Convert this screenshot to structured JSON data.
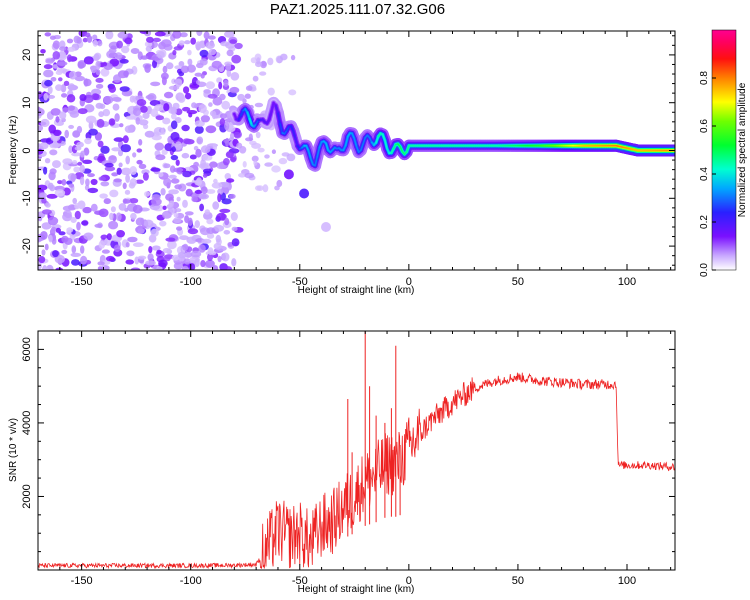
{
  "title": "PAZ1.2025.111.07.32.G06",
  "chart_data": [
    {
      "type": "heatmap",
      "xlabel": "Height of straight line (km)",
      "ylabel": "Frequency (Hz)",
      "xlim": [
        -170,
        122
      ],
      "ylim": [
        -25,
        25
      ],
      "x_ticks": [
        "-150",
        "-100",
        "-50",
        "0",
        "50",
        "100"
      ],
      "x_tick_values": [
        -150,
        -100,
        -50,
        0,
        50,
        100
      ],
      "y_ticks": [
        "-20",
        "-10",
        "0",
        "10",
        "20"
      ],
      "y_tick_values": [
        -20,
        -10,
        0,
        10,
        20
      ],
      "colorbar": {
        "label": "Normalized spectral amplitude",
        "ticks": [
          "0.0",
          "0.2",
          "0.4",
          "0.6",
          "0.8"
        ],
        "tick_values": [
          0.0,
          0.2,
          0.4,
          0.6,
          0.8
        ],
        "colormap": "rainbow (purple-blue-cyan-green-yellow-orange-red-magenta)"
      },
      "noise_region_x": [
        -170,
        -78
      ],
      "ridge": [
        {
          "x": -80,
          "y": 8,
          "amp": 0.15
        },
        {
          "x": -73,
          "y": 7,
          "amp": 0.4
        },
        {
          "x": -68,
          "y": 5,
          "amp": 0.2
        },
        {
          "x": -62,
          "y": 9,
          "amp": 0.15
        },
        {
          "x": -58,
          "y": 5,
          "amp": 0.3
        },
        {
          "x": -52,
          "y": 3,
          "amp": 0.2
        },
        {
          "x": -48,
          "y": 0,
          "amp": 0.35
        },
        {
          "x": -43,
          "y": -2,
          "amp": 0.3
        },
        {
          "x": -38,
          "y": 2,
          "amp": 0.35
        },
        {
          "x": -33,
          "y": -1,
          "amp": 0.3
        },
        {
          "x": -28,
          "y": 3,
          "amp": 0.35
        },
        {
          "x": -23,
          "y": 1,
          "amp": 0.3
        },
        {
          "x": -18,
          "y": 2,
          "amp": 0.3
        },
        {
          "x": -14,
          "y": 3,
          "amp": 0.45
        },
        {
          "x": -10,
          "y": 1,
          "amp": 0.4
        },
        {
          "x": -5,
          "y": 0,
          "amp": 0.5
        },
        {
          "x": 0,
          "y": 1,
          "amp": 0.45
        },
        {
          "x": 20,
          "y": 1,
          "amp": 0.45
        },
        {
          "x": 40,
          "y": 1,
          "amp": 0.45
        },
        {
          "x": 60,
          "y": 1,
          "amp": 0.55
        },
        {
          "x": 80,
          "y": 1,
          "amp": 0.75
        },
        {
          "x": 95,
          "y": 1,
          "amp": 0.8
        },
        {
          "x": 105,
          "y": 0,
          "amp": 0.75
        },
        {
          "x": 122,
          "y": 0,
          "amp": 0.8
        }
      ],
      "side_lobe": [
        {
          "x": -55,
          "y": -5,
          "amp": 0.15
        },
        {
          "x": -48,
          "y": -9,
          "amp": 0.2
        },
        {
          "x": -38,
          "y": -16,
          "amp": 0.05
        }
      ]
    },
    {
      "type": "line",
      "xlabel": "Height of straight line (km)",
      "ylabel": "SNR (10 * v/v)",
      "xlim": [
        -170,
        122
      ],
      "ylim": [
        0,
        6500
      ],
      "x_ticks": [
        "-150",
        "-100",
        "-50",
        "0",
        "50",
        "100"
      ],
      "x_tick_values": [
        -150,
        -100,
        -50,
        0,
        50,
        100
      ],
      "y_ticks": [
        "2000",
        "4000",
        "6000"
      ],
      "y_tick_values": [
        2000,
        4000,
        6000
      ],
      "series": [
        {
          "color": "#ee2222",
          "points": [
            [
              -170,
              120
            ],
            [
              -130,
              120
            ],
            [
              -100,
              120
            ],
            [
              -80,
              130
            ],
            [
              -70,
              150
            ],
            [
              -65,
              600
            ],
            [
              -60,
              1100
            ],
            [
              -55,
              900
            ],
            [
              -50,
              1000
            ],
            [
              -45,
              700
            ],
            [
              -40,
              1200
            ],
            [
              -35,
              1300
            ],
            [
              -30,
              1700
            ],
            [
              -25,
              2000
            ],
            [
              -20,
              2400
            ],
            [
              -15,
              2600
            ],
            [
              -10,
              2900
            ],
            [
              -5,
              2900
            ],
            [
              0,
              3300
            ],
            [
              5,
              3700
            ],
            [
              10,
              4050
            ],
            [
              15,
              4300
            ],
            [
              20,
              4550
            ],
            [
              25,
              4750
            ],
            [
              30,
              4950
            ],
            [
              35,
              5050
            ],
            [
              40,
              5150
            ],
            [
              45,
              5200
            ],
            [
              50,
              5250
            ],
            [
              55,
              5200
            ],
            [
              60,
              5150
            ],
            [
              70,
              5100
            ],
            [
              80,
              5050
            ],
            [
              90,
              5050
            ],
            [
              95,
              5050
            ],
            [
              96,
              2850
            ],
            [
              100,
              2850
            ],
            [
              110,
              2850
            ],
            [
              122,
              2800
            ]
          ],
          "spikes": [
            [
              -28,
              4650
            ],
            [
              -26,
              3200
            ],
            [
              -20,
              6500
            ],
            [
              -18,
              5000
            ],
            [
              -15,
              4200
            ],
            [
              -11,
              4000
            ],
            [
              -8,
              4400
            ],
            [
              -6,
              6100
            ],
            [
              -4,
              3400
            ]
          ]
        }
      ]
    }
  ]
}
